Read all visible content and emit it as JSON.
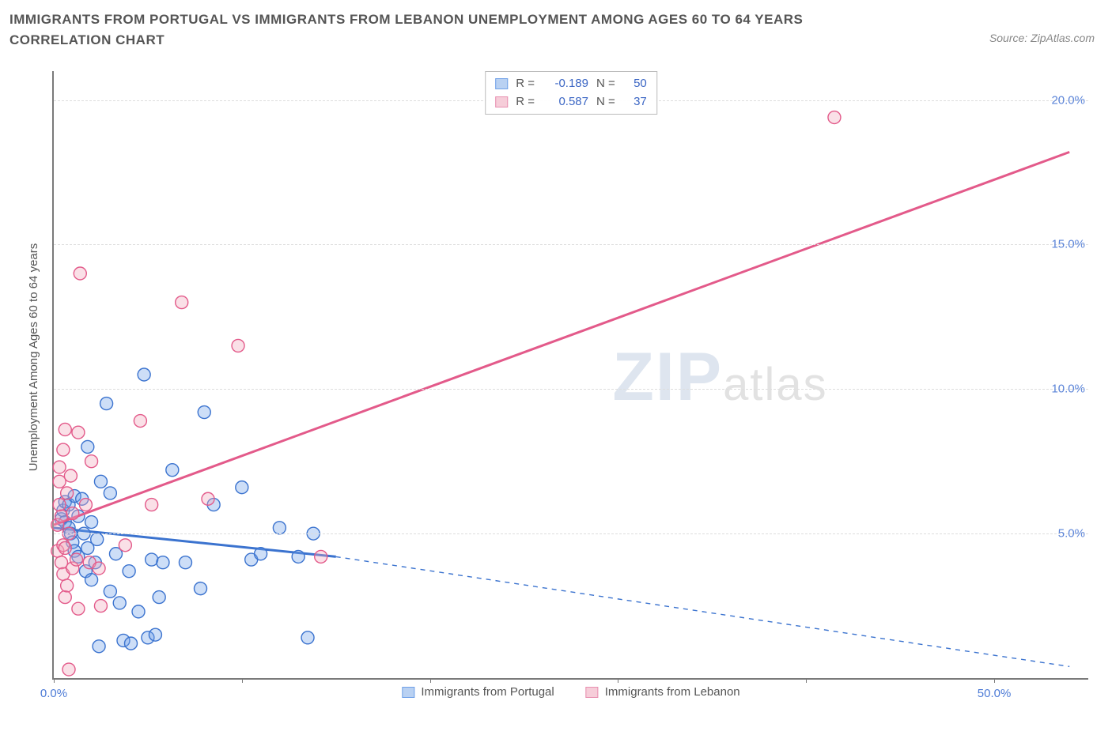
{
  "title": "IMMIGRANTS FROM PORTUGAL VS IMMIGRANTS FROM LEBANON UNEMPLOYMENT AMONG AGES 60 TO 64 YEARS CORRELATION CHART",
  "source": "Source: ZipAtlas.com",
  "watermark": {
    "big": "ZIP",
    "small": "atlas"
  },
  "y_axis_label": "Unemployment Among Ages 60 to 64 years",
  "chart": {
    "type": "scatter",
    "xlim": [
      0,
      55
    ],
    "ylim": [
      0,
      21
    ],
    "x_ticks": [
      0,
      10,
      20,
      30,
      40,
      50
    ],
    "x_tick_labels": [
      "0.0%",
      "",
      "",
      "",
      "",
      "50.0%"
    ],
    "y_ticks": [
      5,
      10,
      15,
      20
    ],
    "y_tick_labels": [
      "5.0%",
      "10.0%",
      "15.0%",
      "20.0%"
    ],
    "y_tick_color": "#5b84d8",
    "grid_color": "#dddddd",
    "axis_color": "#7a7a7a",
    "background_color": "#ffffff",
    "point_radius": 8,
    "point_fill_opacity": 0.35,
    "point_stroke_width": 1.4,
    "series": [
      {
        "name": "Immigrants from Portugal",
        "color": "#6fa0e8",
        "stroke": "#3b73cf",
        "R": "-0.189",
        "N": "50",
        "trend": {
          "solid_to_x": 15,
          "y_start": 5.2,
          "y_at_solid_end": 4.2,
          "y_end": 0.4,
          "x_end": 54
        },
        "points": [
          [
            0.4,
            5.5
          ],
          [
            0.5,
            5.8
          ],
          [
            0.6,
            6.1
          ],
          [
            0.6,
            5.4
          ],
          [
            0.8,
            5.2
          ],
          [
            0.8,
            6.0
          ],
          [
            0.9,
            5.0
          ],
          [
            1.0,
            4.7
          ],
          [
            1.1,
            4.4
          ],
          [
            1.1,
            6.3
          ],
          [
            1.3,
            5.6
          ],
          [
            1.3,
            4.2
          ],
          [
            1.5,
            6.2
          ],
          [
            1.6,
            5.0
          ],
          [
            1.7,
            3.7
          ],
          [
            1.8,
            4.5
          ],
          [
            1.8,
            8.0
          ],
          [
            2.0,
            3.4
          ],
          [
            2.0,
            5.4
          ],
          [
            2.2,
            4.0
          ],
          [
            2.3,
            4.8
          ],
          [
            2.4,
            1.1
          ],
          [
            2.5,
            6.8
          ],
          [
            2.8,
            9.5
          ],
          [
            3.0,
            3.0
          ],
          [
            3.0,
            6.4
          ],
          [
            3.3,
            4.3
          ],
          [
            3.5,
            2.6
          ],
          [
            3.7,
            1.3
          ],
          [
            4.0,
            3.7
          ],
          [
            4.1,
            1.2
          ],
          [
            4.5,
            2.3
          ],
          [
            4.8,
            10.5
          ],
          [
            5.0,
            1.4
          ],
          [
            5.2,
            4.1
          ],
          [
            5.4,
            1.5
          ],
          [
            5.6,
            2.8
          ],
          [
            5.8,
            4.0
          ],
          [
            6.3,
            7.2
          ],
          [
            7.0,
            4.0
          ],
          [
            7.8,
            3.1
          ],
          [
            8.0,
            9.2
          ],
          [
            8.5,
            6.0
          ],
          [
            10.0,
            6.6
          ],
          [
            10.5,
            4.1
          ],
          [
            11.0,
            4.3
          ],
          [
            12.0,
            5.2
          ],
          [
            13.0,
            4.2
          ],
          [
            13.5,
            1.4
          ],
          [
            13.8,
            5.0
          ]
        ]
      },
      {
        "name": "Immigrants from Lebanon",
        "color": "#f2a6bb",
        "stroke": "#e35a8a",
        "R": "0.587",
        "N": "37",
        "trend": {
          "solid_to_x": 54,
          "y_start": 5.3,
          "y_at_solid_end": 18.2,
          "y_end": 18.2,
          "x_end": 54
        },
        "points": [
          [
            0.2,
            4.4
          ],
          [
            0.2,
            5.3
          ],
          [
            0.3,
            6.0
          ],
          [
            0.3,
            6.8
          ],
          [
            0.3,
            7.3
          ],
          [
            0.4,
            5.6
          ],
          [
            0.4,
            4.0
          ],
          [
            0.5,
            4.6
          ],
          [
            0.5,
            7.9
          ],
          [
            0.5,
            3.6
          ],
          [
            0.6,
            2.8
          ],
          [
            0.6,
            8.6
          ],
          [
            0.6,
            4.5
          ],
          [
            0.7,
            3.2
          ],
          [
            0.7,
            6.4
          ],
          [
            0.8,
            5.0
          ],
          [
            0.8,
            0.3
          ],
          [
            0.9,
            7.0
          ],
          [
            1.0,
            3.8
          ],
          [
            1.0,
            5.7
          ],
          [
            1.2,
            4.1
          ],
          [
            1.3,
            2.4
          ],
          [
            1.3,
            8.5
          ],
          [
            1.4,
            14.0
          ],
          [
            1.7,
            6.0
          ],
          [
            1.9,
            4.0
          ],
          [
            2.0,
            7.5
          ],
          [
            2.4,
            3.8
          ],
          [
            2.5,
            2.5
          ],
          [
            3.8,
            4.6
          ],
          [
            4.6,
            8.9
          ],
          [
            5.2,
            6.0
          ],
          [
            6.8,
            13.0
          ],
          [
            8.2,
            6.2
          ],
          [
            9.8,
            11.5
          ],
          [
            14.2,
            4.2
          ],
          [
            41.5,
            19.4
          ]
        ]
      }
    ]
  },
  "stats_legend_labels": {
    "R": "R =",
    "N": "N ="
  },
  "bottom_legend": [
    {
      "label": "Immigrants from Portugal",
      "fill": "#b9d1f2",
      "stroke": "#6fa0e8"
    },
    {
      "label": "Immigrants from Lebanon",
      "fill": "#f6cdd9",
      "stroke": "#e88fb0"
    }
  ]
}
